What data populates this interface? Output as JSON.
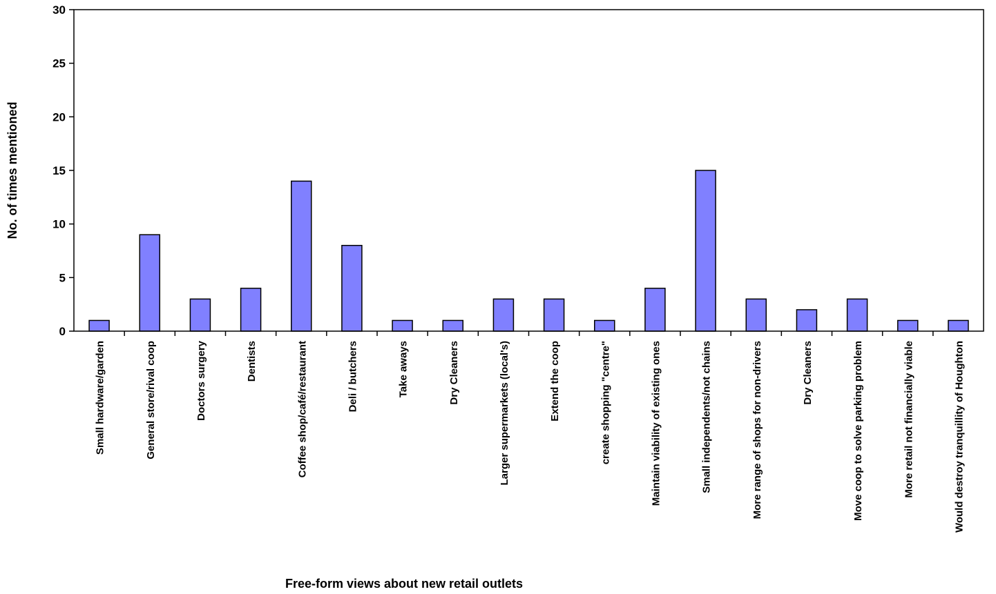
{
  "chart_data": {
    "type": "bar",
    "xlabel": "Free-form views about new retail outlets",
    "ylabel": "No. of times mentioned",
    "ylim": [
      0,
      30
    ],
    "yticks": [
      0,
      5,
      10,
      15,
      20,
      25,
      30
    ],
    "grid": false,
    "bar_color": "#8080ff",
    "categories": [
      "Small hardware/garden",
      "General store/rival coop",
      "Doctors surgery",
      "Dentists",
      "Coffee shop/café/restaurant",
      "Deli / butchers",
      "Take aways",
      "Dry Cleaners",
      "Larger supermarkets (local's)",
      "Extend the coop",
      "create shopping \"centre\"",
      "Maintain viability of existing ones",
      "Small independents/not chains",
      "More range of shops for non-drivers",
      "Dry Cleaners",
      "Move coop to solve parking problem",
      "More retail not financially viable",
      "Would destroy tranquillity of Houghton"
    ],
    "values": [
      1,
      9,
      3,
      4,
      14,
      8,
      1,
      1,
      3,
      3,
      1,
      4,
      15,
      3,
      2,
      3,
      1,
      1
    ]
  }
}
